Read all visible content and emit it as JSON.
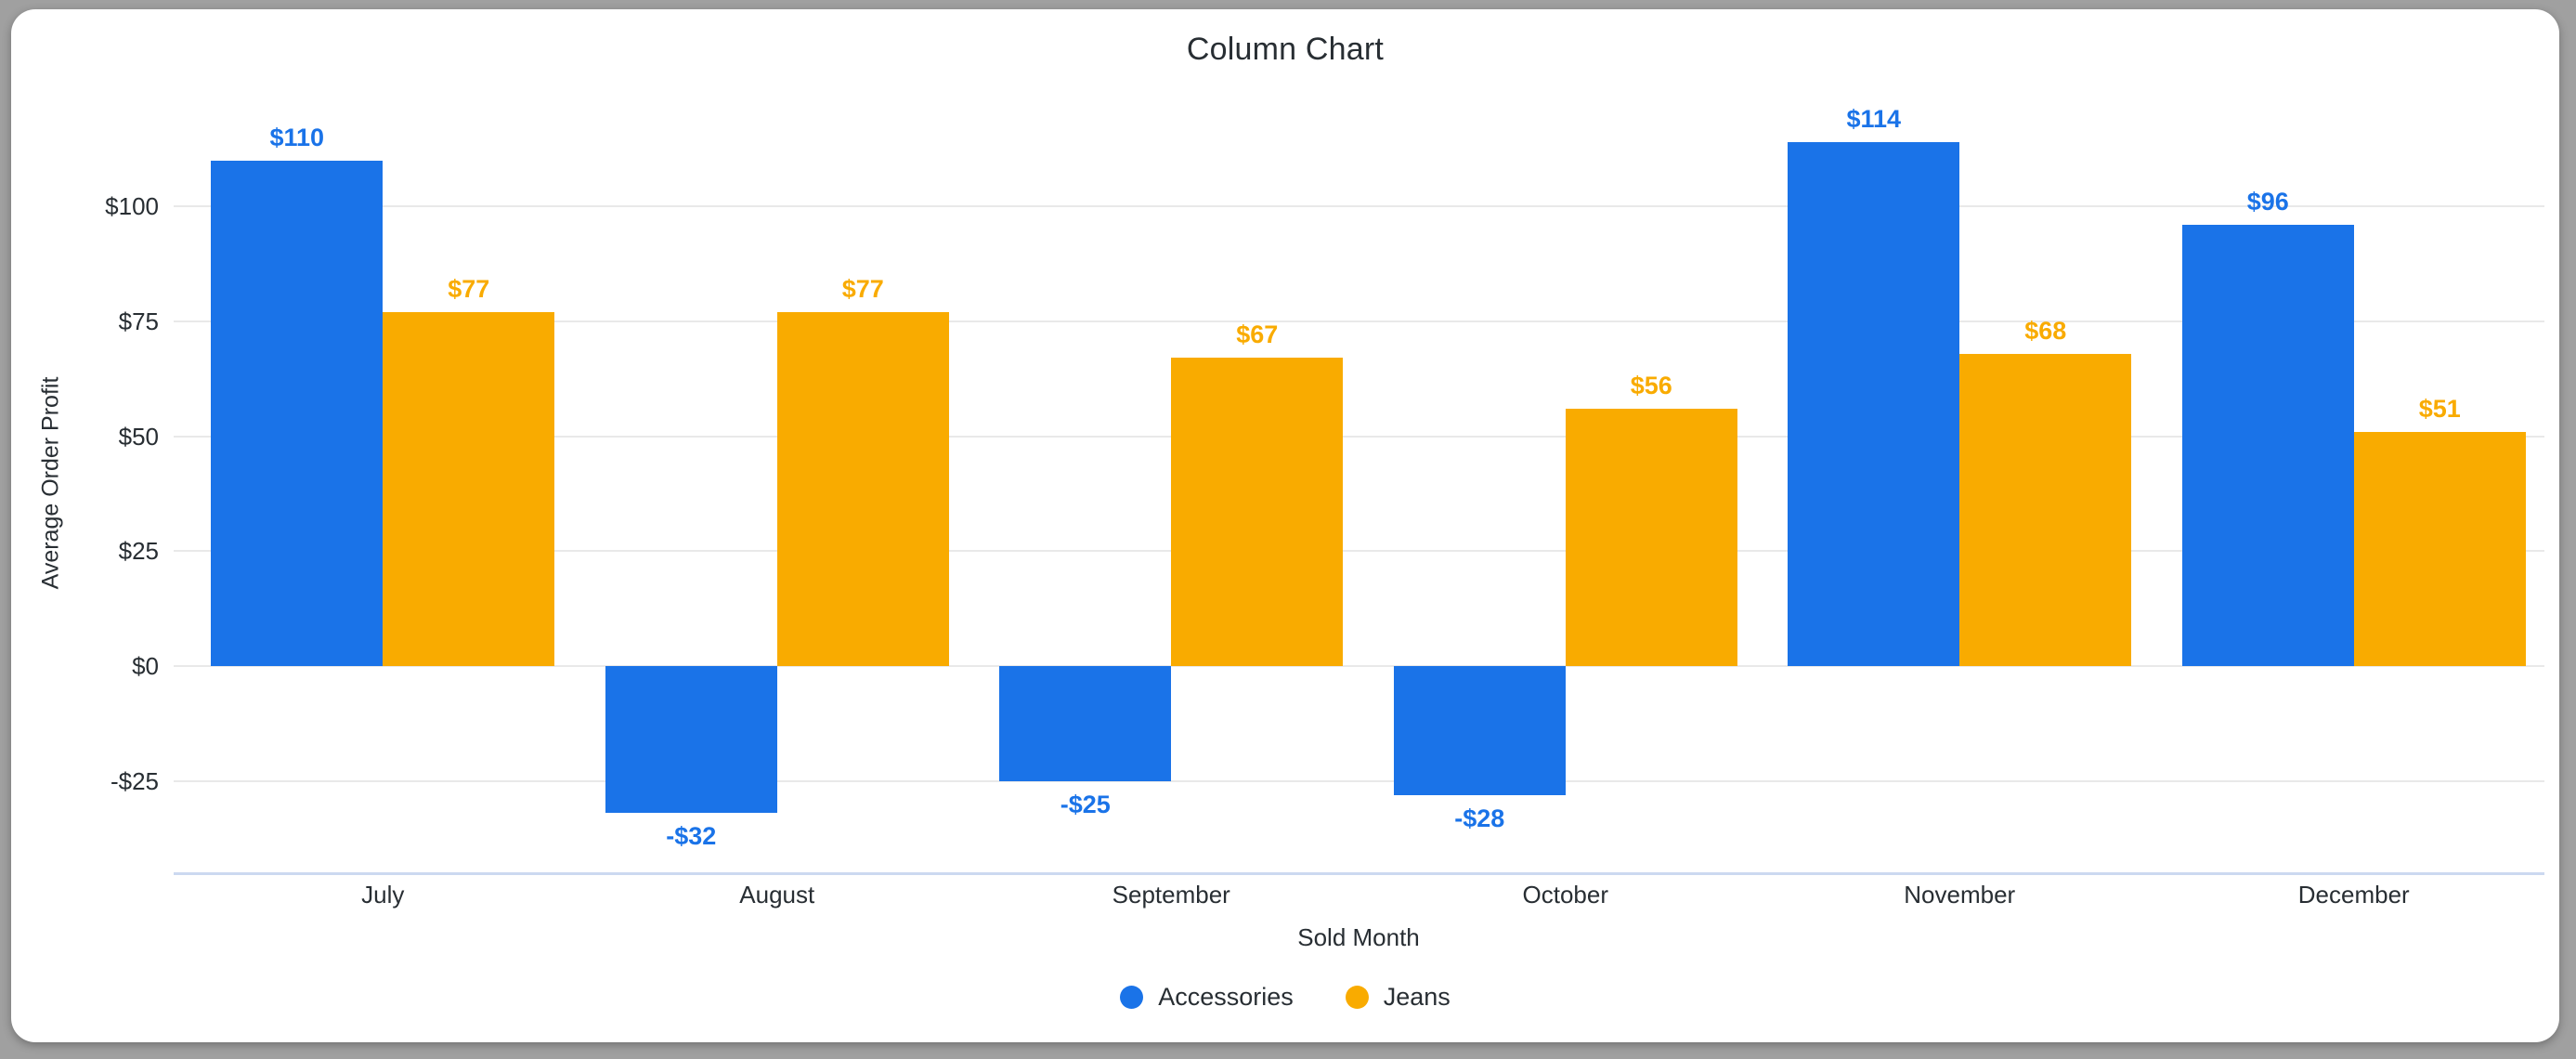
{
  "page": {
    "background_color": "#a0a0a0",
    "card_background_color": "#ffffff"
  },
  "chart_data": {
    "type": "bar",
    "title": "Column Chart",
    "xlabel": "Sold Month",
    "ylabel": "Average Order Profit",
    "categories": [
      "July",
      "August",
      "September",
      "October",
      "November",
      "December"
    ],
    "series": [
      {
        "name": "Accessories",
        "color": "#1a73e8",
        "values": [
          110,
          -32,
          -25,
          -28,
          114,
          96
        ],
        "value_labels": [
          "$110",
          "-$32",
          "-$25",
          "-$28",
          "$114",
          "$96"
        ]
      },
      {
        "name": "Jeans",
        "color": "#f9ab00",
        "values": [
          77,
          77,
          67,
          56,
          68,
          51
        ],
        "value_labels": [
          "$77",
          "$77",
          "$67",
          "$56",
          "$68",
          "$51"
        ]
      }
    ],
    "y_ticks": [
      {
        "value": 100,
        "label": "$100"
      },
      {
        "value": 75,
        "label": "$75"
      },
      {
        "value": 50,
        "label": "$50"
      },
      {
        "value": 25,
        "label": "$25"
      },
      {
        "value": 0,
        "label": "$0"
      },
      {
        "value": -25,
        "label": "-$25"
      }
    ],
    "ylim": [
      -45,
      125
    ],
    "grid": true,
    "legend_position": "bottom",
    "axis_text_color": "#282e33",
    "grid_color": "#e9e9e9",
    "baseline_color": "#ccd9f0"
  }
}
